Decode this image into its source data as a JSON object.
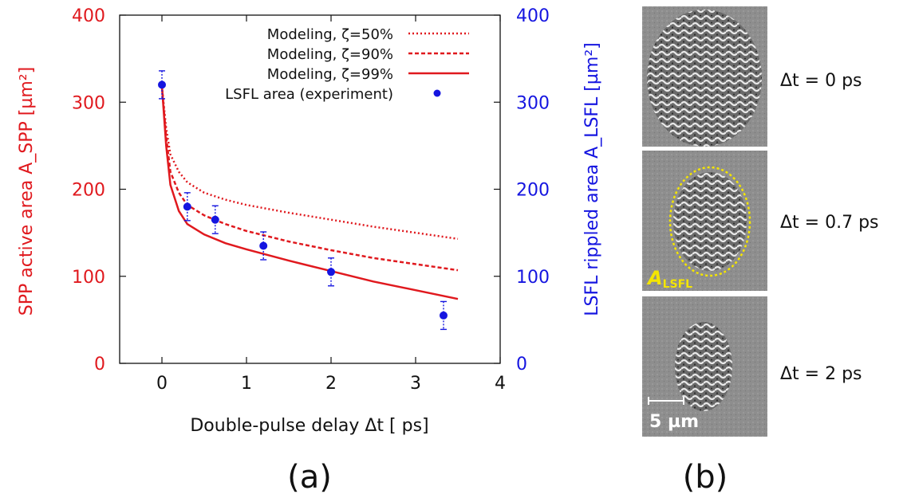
{
  "chart_data": {
    "type": "line",
    "xlabel": "Double-pulse delay Δt  [ ps]",
    "ylabel_left": "SPP active area A_SPP [µm²]",
    "ylabel_right": "LSFL rippled area A_LSFL [µm²]",
    "xlim": [
      -0.5,
      4
    ],
    "ylim": [
      0,
      400
    ],
    "xticks": [
      "0",
      "1",
      "2",
      "3",
      "4"
    ],
    "yticks_left": [
      "0",
      "100",
      "200",
      "300",
      "400"
    ],
    "yticks_right": [
      "0",
      "100",
      "200",
      "300",
      "400"
    ],
    "legend_position": "top-right",
    "series": [
      {
        "name": "Modeling, ζ=50%",
        "style": "dotted",
        "color": "#e0191e",
        "x": [
          0,
          0.05,
          0.1,
          0.2,
          0.3,
          0.5,
          0.75,
          1.0,
          1.5,
          2.0,
          2.5,
          3.0,
          3.5
        ],
        "y": [
          318,
          270,
          240,
          220,
          208,
          196,
          188,
          182,
          173,
          165,
          157,
          150,
          143
        ]
      },
      {
        "name": "Modeling, ζ=90%",
        "style": "dashed",
        "color": "#e0191e",
        "x": [
          0,
          0.05,
          0.1,
          0.2,
          0.3,
          0.5,
          0.75,
          1.0,
          1.5,
          2.0,
          2.5,
          3.0,
          3.5
        ],
        "y": [
          318,
          260,
          220,
          196,
          182,
          170,
          160,
          152,
          140,
          130,
          121,
          114,
          107
        ]
      },
      {
        "name": "Modeling, ζ=99%",
        "style": "solid",
        "color": "#e0191e",
        "x": [
          0,
          0.05,
          0.1,
          0.2,
          0.3,
          0.5,
          0.75,
          1.0,
          1.5,
          2.0,
          2.5,
          3.0,
          3.5
        ],
        "y": [
          318,
          250,
          205,
          175,
          160,
          148,
          138,
          131,
          118,
          106,
          94,
          84,
          74
        ]
      },
      {
        "name": "LSFL area (experiment)",
        "style": "points",
        "color": "#1515e0",
        "x": [
          0,
          0.3,
          0.63,
          1.2,
          2.0,
          3.33
        ],
        "y": [
          320,
          180,
          165,
          135,
          105,
          55
        ],
        "err": [
          16,
          16,
          16,
          16,
          16,
          16
        ]
      }
    ]
  },
  "panel_b": {
    "labels": [
      "Δt = 0 ps",
      "Δt = 0.7 ps",
      "Δt = 2 ps"
    ],
    "annotation": "A",
    "annotation_sub": "LSFL",
    "scalebar": "5 µm"
  },
  "panel_labels": [
    "(a)",
    "(b)"
  ]
}
